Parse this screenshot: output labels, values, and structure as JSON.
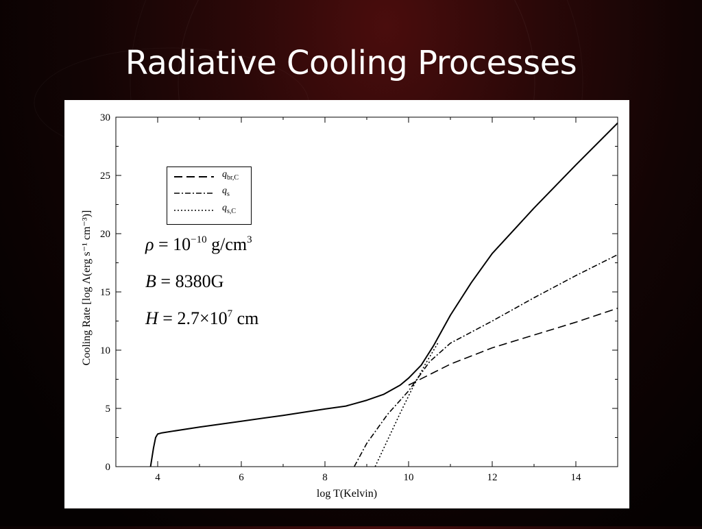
{
  "slide": {
    "title": "Radiative Cooling Processes"
  },
  "chart_data": {
    "type": "line",
    "xlabel": "log T(Kelvin)",
    "ylabel": "Cooling Rate [log Λ(erg s⁻¹ cm⁻³)]",
    "xlim": [
      3,
      15
    ],
    "ylim": [
      0,
      30
    ],
    "xticks": [
      4,
      6,
      8,
      10,
      12,
      14
    ],
    "yticks": [
      0,
      5,
      10,
      15,
      20,
      25,
      30
    ],
    "grid": false,
    "legend_position": "top-left",
    "legend": [
      {
        "label": "q",
        "sub": "br,C",
        "style": "dashed"
      },
      {
        "label": "q",
        "sub": "s",
        "style": "dashdot"
      },
      {
        "label": "q",
        "sub": "s,C",
        "style": "dotted"
      }
    ],
    "annotations": [
      {
        "lhs": "ρ",
        "rel": "=",
        "base": "10",
        "sup": "−10",
        "unit": "g/cm",
        "unit_sup": "3"
      },
      {
        "lhs": "B",
        "rel": "=",
        "value": "8380G"
      },
      {
        "lhs": "H",
        "rel": "=",
        "mantissa": "2.7",
        "times": "×",
        "base": "10",
        "sup": "7",
        "unit": "cm"
      }
    ],
    "series": [
      {
        "style": "solid",
        "x": [
          3.83,
          3.9,
          3.95,
          4.0,
          4.1,
          5.0,
          6.0,
          7.0,
          8.0,
          8.5,
          9.0,
          9.4,
          9.8,
          10.0,
          10.3,
          10.6,
          11.0,
          11.5,
          12.0,
          13.0,
          14.0,
          15.0
        ],
        "y": [
          0.0,
          1.6,
          2.5,
          2.8,
          2.9,
          3.4,
          3.9,
          4.4,
          4.95,
          5.2,
          5.7,
          6.2,
          7.0,
          7.6,
          8.7,
          10.4,
          13.0,
          15.8,
          18.3,
          22.2,
          25.9,
          29.5
        ]
      },
      {
        "legend_index": 0,
        "style": "dashed",
        "x": [
          10.0,
          11.0,
          12.0,
          13.0,
          14.0,
          15.0
        ],
        "y": [
          7.0,
          8.8,
          10.2,
          11.3,
          12.4,
          13.6
        ]
      },
      {
        "legend_index": 1,
        "style": "dashdot",
        "x": [
          8.7,
          9.0,
          9.5,
          10.0,
          10.5,
          11.0,
          12.0,
          13.0,
          14.0,
          15.0
        ],
        "y": [
          0.0,
          2.0,
          4.5,
          6.5,
          9.0,
          10.6,
          12.5,
          14.5,
          16.4,
          18.2
        ]
      },
      {
        "legend_index": 2,
        "style": "dotted",
        "x": [
          9.2,
          9.5,
          9.8,
          10.1,
          10.4,
          10.7
        ],
        "y": [
          0.0,
          2.3,
          4.6,
          6.8,
          8.8,
          10.6
        ]
      }
    ]
  }
}
